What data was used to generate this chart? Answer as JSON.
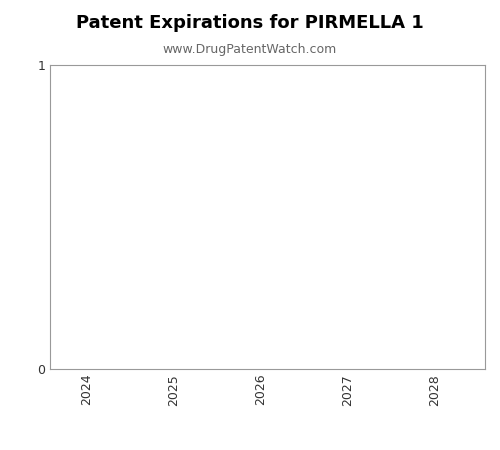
{
  "title": "Patent Expirations for PIRMELLA 1",
  "subtitle": "www.DrugPatentWatch.com",
  "title_fontsize": 13,
  "subtitle_fontsize": 9,
  "title_fontweight": "bold",
  "xlabel": "",
  "ylabel": "",
  "xlim": [
    2023.5,
    2028.5
  ],
  "ylim": [
    0,
    1
  ],
  "xticks": [
    2024,
    2025,
    2026,
    2027,
    2028
  ],
  "yticks": [
    0,
    1
  ],
  "background_color": "#ffffff",
  "axes_edge_color": "#999999",
  "tick_label_color": "#333333",
  "tick_fontsize": 9,
  "rotate_xticks": 90,
  "subtitle_color": "#666666"
}
